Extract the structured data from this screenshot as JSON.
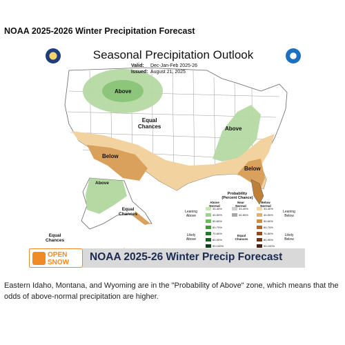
{
  "page": {
    "title": "NOAA 2025-2026 Winter Precipitation Forecast",
    "caption": "Eastern Idaho, Montana, and Wyoming are in the \"Probability of Above\" zone, which means that the odds of above-normal precipitation are higher."
  },
  "map": {
    "title": "Seasonal Precipitation Outlook",
    "valid_key": "Valid:",
    "valid_value": "Dec-Jan-Feb 2025-26",
    "issued_key": "Issued:",
    "issued_value": "August 21, 2025",
    "labels": {
      "above_north": "Above",
      "above_east": "Above",
      "above_alaska": "Above",
      "below_southwest": "Below",
      "below_southeast": "Below",
      "equal_chances_center_1": "Equal",
      "equal_chances_center_2": "Chances",
      "equal_chances_alaska_1": "Equal",
      "equal_chances_alaska_2": "Chances",
      "equal_chances_sw_1": "Equal",
      "equal_chances_sw_2": "Chances"
    },
    "colors": {
      "above_light": "#b5d9a3",
      "above_mid": "#8cc67a",
      "above_dark": "#58a24a",
      "below_light": "#f2d3a0",
      "below_mid": "#d9a15c",
      "below_dark": "#c07f36",
      "state_lines": "#888888",
      "water": "#ffffff"
    }
  },
  "legend": {
    "title_1": "Probability",
    "title_2": "(Percent Chance)",
    "above_head_1": "Above",
    "above_head_2": "Normal",
    "near_head_1": "Near",
    "near_head_2": "Normal",
    "below_head_1": "Below",
    "below_head_2": "Normal",
    "leaning_above_1": "Leaning",
    "leaning_above_2": "Above",
    "likely_above_1": "Likely",
    "likely_above_2": "Above",
    "leaning_below_1": "Leaning",
    "leaning_below_2": "Below",
    "likely_below_1": "Likely",
    "likely_below_2": "Below",
    "equal_chances_1": "Equal",
    "equal_chances_2": "Chances",
    "above_ranges": [
      "33-40%",
      "40-50%",
      "50-60%",
      "60-70%",
      "70-80%",
      "80-90%",
      "90-100%"
    ],
    "near_ranges": [
      "33-40%",
      "40-50%"
    ],
    "below_ranges": [
      "33-40%",
      "40-50%",
      "50-60%",
      "60-70%",
      "70-80%",
      "80-90%",
      "90-100%"
    ],
    "above_colors": [
      "#c6e5b3",
      "#9fd18c",
      "#6fb95f",
      "#3f9a3a",
      "#237a2a",
      "#17601f",
      "#0b4314"
    ],
    "near_colors": [
      "#cfcfcf",
      "#a8a8a8"
    ],
    "below_colors": [
      "#f2d6a6",
      "#e3b071",
      "#cf8c43",
      "#b5672a",
      "#93481d",
      "#6e3317",
      "#4a200e"
    ]
  },
  "banner": {
    "brand_1": "OPEN",
    "brand_2": "SNOW",
    "text": "NOAA 2025-26 Winter Precip Forecast",
    "brand_color": "#f08a24",
    "text_color": "#1b2a52"
  }
}
